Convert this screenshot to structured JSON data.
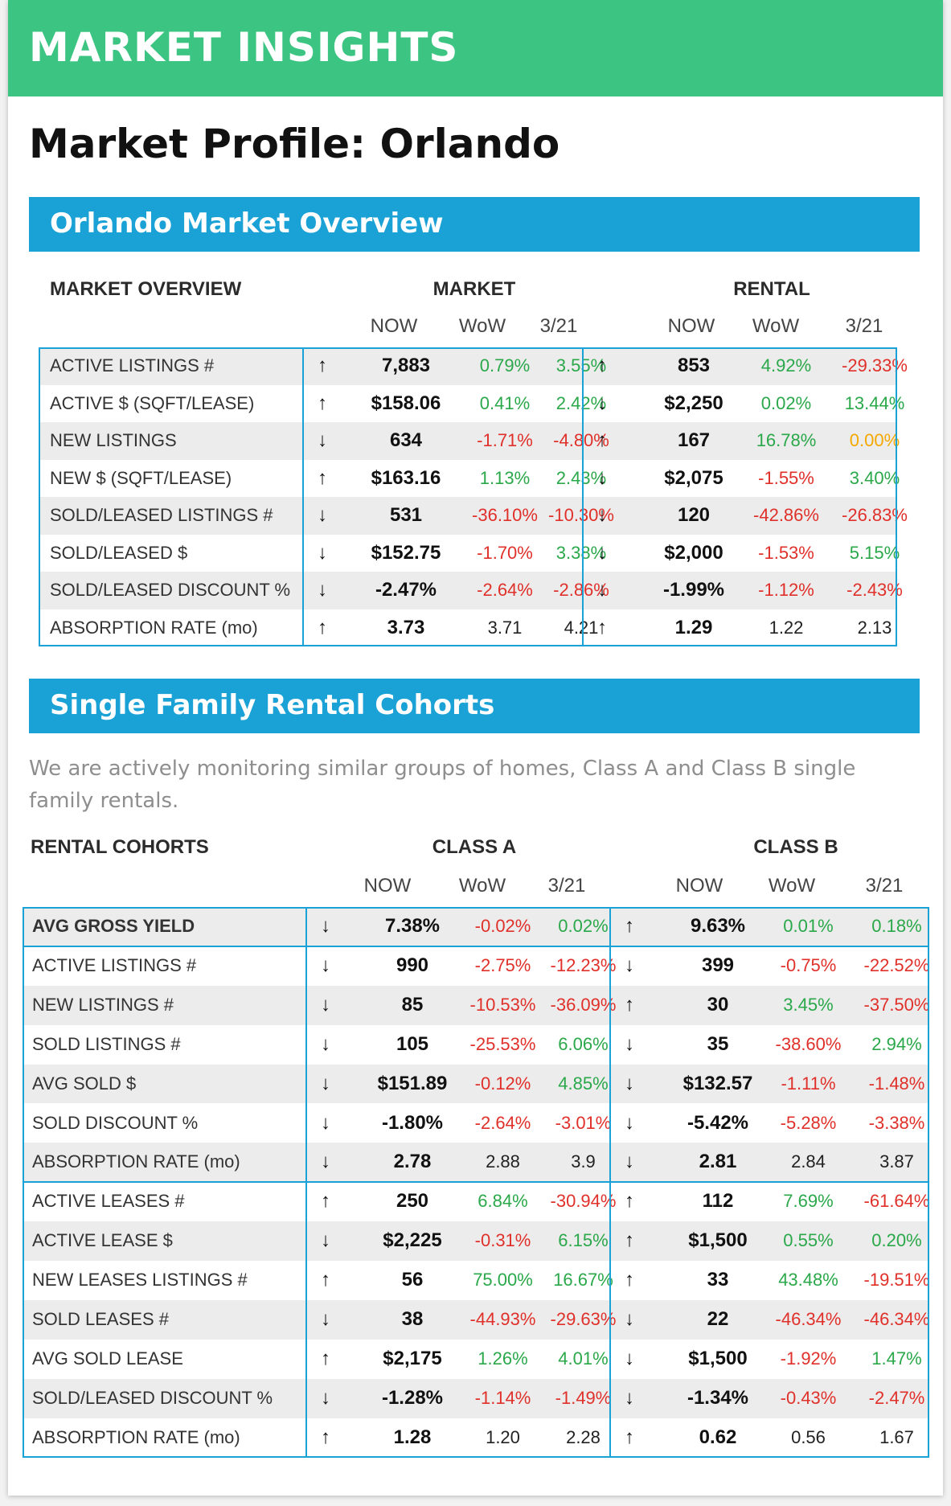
{
  "banner": {
    "title": "MARKET INSIGHTS"
  },
  "profile_title": "Market Profile: Orlando",
  "colors": {
    "banner": "#3cc482",
    "section": "#1aa1d6",
    "positive": "#2aa84a",
    "negative": "#e0302a",
    "zero": "#f5a800"
  },
  "overview": {
    "section_title": "Orlando Market Overview",
    "header_label": "MARKET OVERVIEW",
    "group_a": "MARKET",
    "group_b": "RENTAL",
    "sub_a": [
      "NOW",
      "WoW",
      "3/21"
    ],
    "sub_b": [
      "NOW",
      "WoW",
      "3/21"
    ],
    "rows": [
      {
        "label": "ACTIVE LISTINGS #",
        "a_dir": "↑",
        "a_now": "7,883",
        "a_wow": "0.79%",
        "a_wow_c": "pos",
        "a_mar": "3.55%",
        "a_mar_c": "pos",
        "b_dir": "↑",
        "b_now": "853",
        "b_wow": "4.92%",
        "b_wow_c": "pos",
        "b_mar": "-29.33%",
        "b_mar_c": "neg"
      },
      {
        "label": "ACTIVE $ (SQFT/LEASE)",
        "a_dir": "↑",
        "a_now": "$158.06",
        "a_wow": "0.41%",
        "a_wow_c": "pos",
        "a_mar": "2.42%",
        "a_mar_c": "pos",
        "b_dir": "↓",
        "b_now": "$2,250",
        "b_wow": "0.02%",
        "b_wow_c": "pos",
        "b_mar": "13.44%",
        "b_mar_c": "pos"
      },
      {
        "label": "NEW LISTINGS",
        "a_dir": "↓",
        "a_now": "634",
        "a_wow": "-1.71%",
        "a_wow_c": "neg",
        "a_mar": "-4.80%",
        "a_mar_c": "neg",
        "b_dir": "↑",
        "b_now": "167",
        "b_wow": "16.78%",
        "b_wow_c": "pos",
        "b_mar": "0.00%",
        "b_mar_c": "zero"
      },
      {
        "label": "NEW $ (SQFT/LEASE)",
        "a_dir": "↑",
        "a_now": "$163.16",
        "a_wow": "1.13%",
        "a_wow_c": "pos",
        "a_mar": "2.43%",
        "a_mar_c": "pos",
        "b_dir": "↓",
        "b_now": "$2,075",
        "b_wow": "-1.55%",
        "b_wow_c": "neg",
        "b_mar": "3.40%",
        "b_mar_c": "pos"
      },
      {
        "label": "SOLD/LEASED LISTINGS #",
        "a_dir": "↓",
        "a_now": "531",
        "a_wow": "-36.10%",
        "a_wow_c": "neg",
        "a_mar": "-10.30%",
        "a_mar_c": "neg",
        "b_dir": "↓",
        "b_now": "120",
        "b_wow": "-42.86%",
        "b_wow_c": "neg",
        "b_mar": "-26.83%",
        "b_mar_c": "neg"
      },
      {
        "label": "SOLD/LEASED $",
        "a_dir": "↓",
        "a_now": "$152.75",
        "a_wow": "-1.70%",
        "a_wow_c": "neg",
        "a_mar": "3.38%",
        "a_mar_c": "pos",
        "b_dir": "↓",
        "b_now": "$2,000",
        "b_wow": "-1.53%",
        "b_wow_c": "neg",
        "b_mar": "5.15%",
        "b_mar_c": "pos"
      },
      {
        "label": "SOLD/LEASED DISCOUNT %",
        "a_dir": "↓",
        "a_now": "-2.47%",
        "a_wow": "-2.64%",
        "a_wow_c": "neg",
        "a_mar": "-2.86%",
        "a_mar_c": "neg",
        "b_dir": "↓",
        "b_now": "-1.99%",
        "b_wow": "-1.12%",
        "b_wow_c": "neg",
        "b_mar": "-2.43%",
        "b_mar_c": "neg"
      },
      {
        "label": "ABSORPTION RATE (mo)",
        "a_dir": "↑",
        "a_now": "3.73",
        "a_wow": "3.71",
        "a_wow_c": "neutral",
        "a_mar": "4.21",
        "a_mar_c": "neutral",
        "b_dir": "↑",
        "b_now": "1.29",
        "b_wow": "1.22",
        "b_wow_c": "neutral",
        "b_mar": "2.13",
        "b_mar_c": "neutral"
      }
    ]
  },
  "cohorts": {
    "section_title": "Single Family Rental Cohorts",
    "intro": "We are actively monitoring similar groups of homes, Class A and Class B single family rentals.",
    "header_label": "RENTAL COHORTS",
    "group_a": "CLASS A",
    "group_b": "CLASS B",
    "sub_a": [
      "NOW",
      "WoW",
      "3/21"
    ],
    "sub_b": [
      "NOW",
      "WoW",
      "3/21"
    ],
    "rows": [
      {
        "label": "AVG GROSS YIELD",
        "bold": true,
        "a_dir": "↓",
        "a_now": "7.38%",
        "a_wow": "-0.02%",
        "a_wow_c": "neg",
        "a_mar": "0.02%",
        "a_mar_c": "pos",
        "b_dir": "↑",
        "b_now": "9.63%",
        "b_wow": "0.01%",
        "b_wow_c": "pos",
        "b_mar": "0.18%",
        "b_mar_c": "pos"
      },
      {
        "label": "ACTIVE LISTINGS #",
        "a_dir": "↓",
        "a_now": "990",
        "a_wow": "-2.75%",
        "a_wow_c": "neg",
        "a_mar": "-12.23%",
        "a_mar_c": "neg",
        "b_dir": "↓",
        "b_now": "399",
        "b_wow": "-0.75%",
        "b_wow_c": "neg",
        "b_mar": "-22.52%",
        "b_mar_c": "neg"
      },
      {
        "label": "NEW LISTINGS #",
        "a_dir": "↓",
        "a_now": "85",
        "a_wow": "-10.53%",
        "a_wow_c": "neg",
        "a_mar": "-36.09%",
        "a_mar_c": "neg",
        "b_dir": "↑",
        "b_now": "30",
        "b_wow": "3.45%",
        "b_wow_c": "pos",
        "b_mar": "-37.50%",
        "b_mar_c": "neg"
      },
      {
        "label": "SOLD LISTINGS #",
        "a_dir": "↓",
        "a_now": "105",
        "a_wow": "-25.53%",
        "a_wow_c": "neg",
        "a_mar": "6.06%",
        "a_mar_c": "pos",
        "b_dir": "↓",
        "b_now": "35",
        "b_wow": "-38.60%",
        "b_wow_c": "neg",
        "b_mar": "2.94%",
        "b_mar_c": "pos"
      },
      {
        "label": "AVG SOLD $",
        "a_dir": "↓",
        "a_now": "$151.89",
        "a_wow": "-0.12%",
        "a_wow_c": "neg",
        "a_mar": "4.85%",
        "a_mar_c": "pos",
        "b_dir": "↓",
        "b_now": "$132.57",
        "b_wow": "-1.11%",
        "b_wow_c": "neg",
        "b_mar": "-1.48%",
        "b_mar_c": "neg"
      },
      {
        "label": "SOLD DISCOUNT %",
        "a_dir": "↓",
        "a_now": "-1.80%",
        "a_wow": "-2.64%",
        "a_wow_c": "neg",
        "a_mar": "-3.01%",
        "a_mar_c": "neg",
        "b_dir": "↓",
        "b_now": "-5.42%",
        "b_wow": "-5.28%",
        "b_wow_c": "neg",
        "b_mar": "-3.38%",
        "b_mar_c": "neg"
      },
      {
        "label": "ABSORPTION RATE (mo)",
        "a_dir": "↓",
        "a_now": "2.78",
        "a_wow": "2.88",
        "a_wow_c": "neutral",
        "a_mar": "3.9",
        "a_mar_c": "neutral",
        "b_dir": "↓",
        "b_now": "2.81",
        "b_wow": "2.84",
        "b_wow_c": "neutral",
        "b_mar": "3.87",
        "b_mar_c": "neutral"
      },
      {
        "label": "ACTIVE LEASES #",
        "a_dir": "↑",
        "a_now": "250",
        "a_wow": "6.84%",
        "a_wow_c": "pos",
        "a_mar": "-30.94%",
        "a_mar_c": "neg",
        "b_dir": "↑",
        "b_now": "112",
        "b_wow": "7.69%",
        "b_wow_c": "pos",
        "b_mar": "-61.64%",
        "b_mar_c": "neg"
      },
      {
        "label": "ACTIVE LEASE $",
        "a_dir": "↓",
        "a_now": "$2,225",
        "a_wow": "-0.31%",
        "a_wow_c": "neg",
        "a_mar": "6.15%",
        "a_mar_c": "pos",
        "b_dir": "↑",
        "b_now": "$1,500",
        "b_wow": "0.55%",
        "b_wow_c": "pos",
        "b_mar": "0.20%",
        "b_mar_c": "pos"
      },
      {
        "label": "NEW LEASES LISTINGS #",
        "a_dir": "↑",
        "a_now": "56",
        "a_wow": "75.00%",
        "a_wow_c": "pos",
        "a_mar": "16.67%",
        "a_mar_c": "pos",
        "b_dir": "↑",
        "b_now": "33",
        "b_wow": "43.48%",
        "b_wow_c": "pos",
        "b_mar": "-19.51%",
        "b_mar_c": "neg"
      },
      {
        "label": "SOLD LEASES #",
        "a_dir": "↓",
        "a_now": "38",
        "a_wow": "-44.93%",
        "a_wow_c": "neg",
        "a_mar": "-29.63%",
        "a_mar_c": "neg",
        "b_dir": "↓",
        "b_now": "22",
        "b_wow": "-46.34%",
        "b_wow_c": "neg",
        "b_mar": "-46.34%",
        "b_mar_c": "neg"
      },
      {
        "label": "AVG SOLD LEASE",
        "a_dir": "↑",
        "a_now": "$2,175",
        "a_wow": "1.26%",
        "a_wow_c": "pos",
        "a_mar": "4.01%",
        "a_mar_c": "pos",
        "b_dir": "↓",
        "b_now": "$1,500",
        "b_wow": "-1.92%",
        "b_wow_c": "neg",
        "b_mar": "1.47%",
        "b_mar_c": "pos"
      },
      {
        "label": "SOLD/LEASED DISCOUNT %",
        "a_dir": "↓",
        "a_now": "-1.28%",
        "a_wow": "-1.14%",
        "a_wow_c": "neg",
        "a_mar": "-1.49%",
        "a_mar_c": "neg",
        "b_dir": "↓",
        "b_now": "-1.34%",
        "b_wow": "-0.43%",
        "b_wow_c": "neg",
        "b_mar": "-2.47%",
        "b_mar_c": "neg"
      },
      {
        "label": "ABSORPTION RATE (mo)",
        "a_dir": "↑",
        "a_now": "1.28",
        "a_wow": "1.20",
        "a_wow_c": "neutral",
        "a_mar": "2.28",
        "a_mar_c": "neutral",
        "b_dir": "↑",
        "b_now": "0.62",
        "b_wow": "0.56",
        "b_wow_c": "neutral",
        "b_mar": "1.67",
        "b_mar_c": "neutral"
      }
    ]
  }
}
